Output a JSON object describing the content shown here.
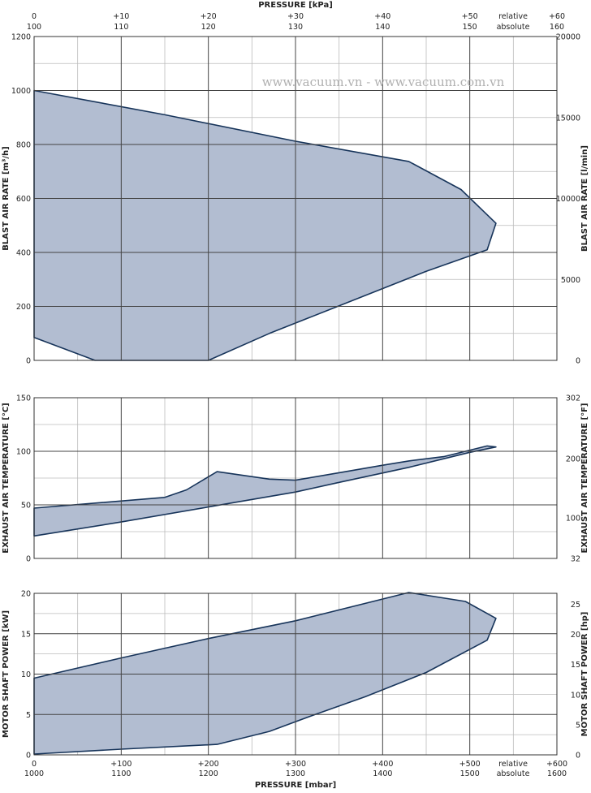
{
  "top_axis": {
    "title": "PRESSURE  [kPa]",
    "relative_ticks": [
      "0",
      "+10",
      "+20",
      "+30",
      "+40",
      "+50"
    ],
    "absolute_ticks": [
      "100",
      "110",
      "120",
      "130",
      "140",
      "150"
    ],
    "end_relative": "+60",
    "end_absolute": "160",
    "relative_label": "relative",
    "absolute_label": "absolute"
  },
  "bottom_axis": {
    "title": "PRESSURE  [mbar]",
    "relative_ticks": [
      "0",
      "+100",
      "+200",
      "+300",
      "+400",
      "+500"
    ],
    "absolute_ticks": [
      "1000",
      "1100",
      "1200",
      "1300",
      "1400",
      "1500"
    ],
    "end_relative": "+600",
    "end_absolute": "1600",
    "relative_label": "relative",
    "absolute_label": "absolute"
  },
  "watermark": "www.vacuum.vn  -  www.vacuum.com.vn",
  "chart_data": [
    {
      "type": "area",
      "id": "blast",
      "ylabel": "BLAST AIR RATE  [m³/h]",
      "y2label": "BLAST AIR RATE  [l/min]",
      "xlim": [
        0,
        600
      ],
      "ylim": [
        0,
        1200
      ],
      "yticks": [
        0,
        200,
        400,
        600,
        800,
        1000,
        1200
      ],
      "ytick_labels": [
        "0",
        "200",
        "400",
        "600",
        "800",
        "1000",
        "1200"
      ],
      "y2ticks": [
        0,
        5000,
        10000,
        15000,
        20000
      ],
      "y2tick_labels": [
        "0",
        "5000",
        "10000",
        "15000",
        "20000"
      ],
      "y2_per_y": 16.6667,
      "polygon": [
        [
          0,
          1000
        ],
        [
          150,
          910
        ],
        [
          300,
          812
        ],
        [
          430,
          737
        ],
        [
          490,
          633
        ],
        [
          530,
          508
        ],
        [
          520,
          410
        ],
        [
          450,
          330
        ],
        [
          270,
          100
        ],
        [
          200,
          0
        ],
        [
          70,
          0
        ],
        [
          0,
          85
        ]
      ]
    },
    {
      "type": "area",
      "id": "temperature",
      "ylabel": "EXHAUST AIR TEMPERATURE  [°C]",
      "y2label": "EXHAUST AIR TEMPERATURE  [°F]",
      "xlim": [
        0,
        600
      ],
      "ylim": [
        0,
        150
      ],
      "yticks": [
        0,
        50,
        100,
        150
      ],
      "ytick_labels": [
        "0",
        "50",
        "100",
        "150"
      ],
      "y2ticks": [
        0,
        37.78,
        93.33,
        150
      ],
      "y2tick_labels": [
        "32",
        "100",
        "200",
        "302"
      ],
      "polygon": [
        [
          0,
          47
        ],
        [
          150,
          57
        ],
        [
          175,
          64
        ],
        [
          210,
          81
        ],
        [
          270,
          74
        ],
        [
          300,
          73
        ],
        [
          350,
          80
        ],
        [
          400,
          87
        ],
        [
          430,
          91
        ],
        [
          470,
          95
        ],
        [
          520,
          105
        ],
        [
          530,
          104
        ],
        [
          500,
          99
        ],
        [
          430,
          85
        ],
        [
          350,
          71
        ],
        [
          300,
          62
        ],
        [
          200,
          48
        ],
        [
          100,
          34
        ],
        [
          0,
          21
        ]
      ]
    },
    {
      "type": "area",
      "id": "power",
      "ylabel": "MOTOR SHAFT POWER  [kW]",
      "y2label": "MOTOR SHAFT POWER  [hp]",
      "xlim": [
        0,
        600
      ],
      "ylim": [
        0,
        20
      ],
      "yticks": [
        0,
        5,
        10,
        15,
        20
      ],
      "ytick_labels": [
        "0",
        "5",
        "10",
        "15",
        "20"
      ],
      "y2ticks": [
        0,
        5,
        10,
        15,
        20,
        25
      ],
      "y2tick_labels": [
        "0",
        "5",
        "10",
        "15",
        "20",
        "25"
      ],
      "y2_per_y": 1.341,
      "polygon": [
        [
          0,
          9.5
        ],
        [
          100,
          12
        ],
        [
          200,
          14.4
        ],
        [
          300,
          16.6
        ],
        [
          430,
          20.1
        ],
        [
          495,
          19
        ],
        [
          530,
          16.9
        ],
        [
          520,
          14.2
        ],
        [
          450,
          10.2
        ],
        [
          380,
          7.2
        ],
        [
          320,
          4.9
        ],
        [
          270,
          2.9
        ],
        [
          210,
          1.3
        ],
        [
          100,
          0.7
        ],
        [
          0,
          0.1
        ]
      ]
    }
  ]
}
